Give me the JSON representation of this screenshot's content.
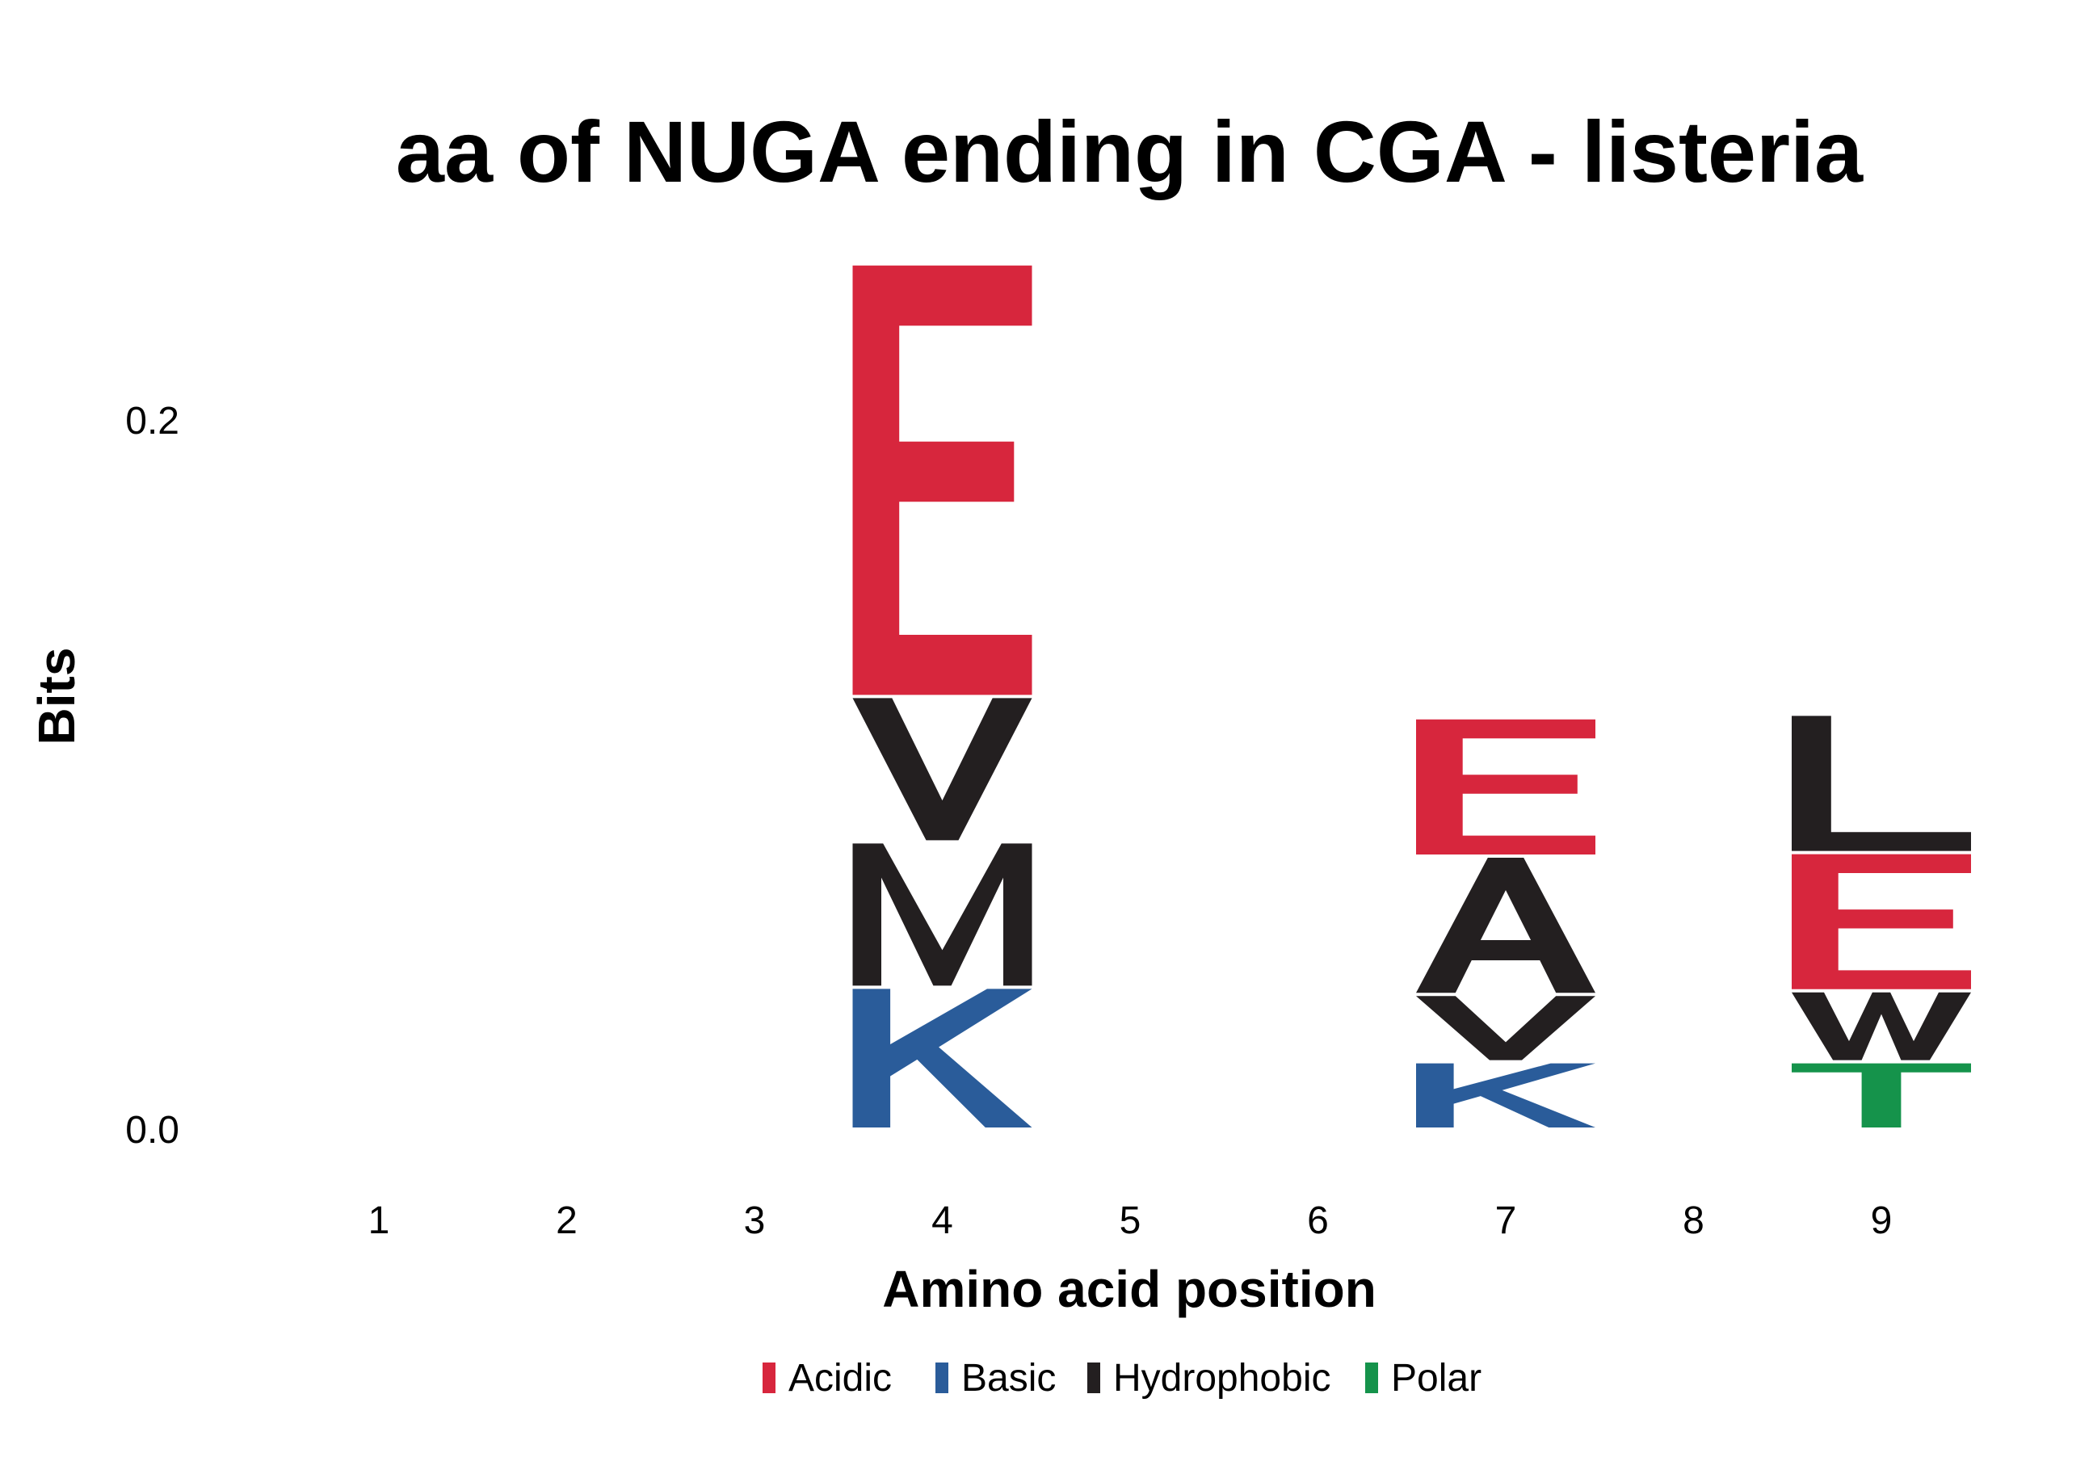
{
  "chart_data": {
    "type": "sequence-logo",
    "title": "aa of NUGA ending in CGA - listeria",
    "xlabel": "Amino acid position",
    "ylabel": "Bits",
    "x": [
      1,
      2,
      3,
      4,
      5,
      6,
      7,
      8,
      9
    ],
    "xticks": [
      "1",
      "2",
      "3",
      "4",
      "5",
      "6",
      "7",
      "8",
      "9"
    ],
    "yticks": [
      "0.0",
      "0.2"
    ],
    "ylim": [
      0,
      0.25
    ],
    "colors": {
      "Acidic": "#d7263d",
      "Basic": "#2a5c9a",
      "Hydrophobic": "#231f20",
      "Polar": "#15934b"
    },
    "legend": {
      "position": "bottom",
      "items": [
        "Acidic",
        "Basic",
        "Hydrophobic",
        "Polar"
      ]
    },
    "stacks": [
      {
        "position": 4,
        "letters": [
          {
            "letter": "K",
            "class": "Basic",
            "bits": 0.04
          },
          {
            "letter": "M",
            "class": "Hydrophobic",
            "bits": 0.041
          },
          {
            "letter": "V",
            "class": "Hydrophobic",
            "bits": 0.041
          },
          {
            "letter": "E",
            "class": "Acidic",
            "bits": 0.122
          }
        ]
      },
      {
        "position": 7,
        "letters": [
          {
            "letter": "K",
            "class": "Basic",
            "bits": 0.019
          },
          {
            "letter": "V",
            "class": "Hydrophobic",
            "bits": 0.019
          },
          {
            "letter": "A",
            "class": "Hydrophobic",
            "bits": 0.039
          },
          {
            "letter": "E",
            "class": "Acidic",
            "bits": 0.039
          }
        ]
      },
      {
        "position": 9,
        "letters": [
          {
            "letter": "T",
            "class": "Polar",
            "bits": 0.019
          },
          {
            "letter": "W",
            "class": "Hydrophobic",
            "bits": 0.02
          },
          {
            "letter": "E",
            "class": "Acidic",
            "bits": 0.039
          },
          {
            "letter": "L",
            "class": "Hydrophobic",
            "bits": 0.039
          }
        ]
      }
    ]
  }
}
